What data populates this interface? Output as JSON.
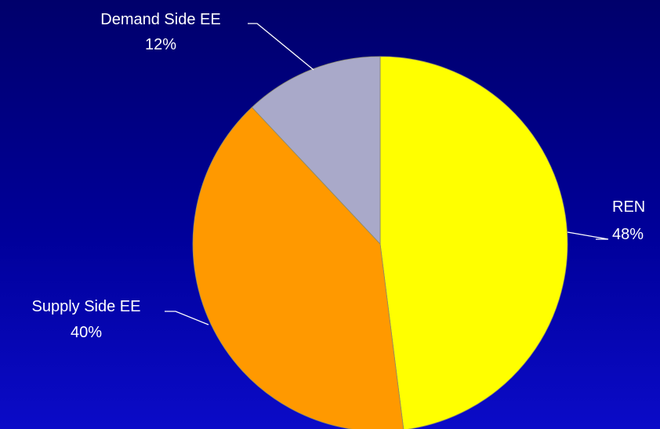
{
  "chart_data": {
    "type": "pie",
    "title": "",
    "slices": [
      {
        "label": "REN",
        "value": 48,
        "value_label": "48%",
        "color": "#ffff00"
      },
      {
        "label": "Supply Side EE",
        "value": 40,
        "value_label": "40%",
        "color": "#ff9900"
      },
      {
        "label": "Demand Side EE",
        "value": 12,
        "value_label": "12%",
        "color": "#a9a9c9"
      }
    ],
    "start": "12 o'clock",
    "direction": "clockwise",
    "legend": "none",
    "background": "blue gradient"
  }
}
